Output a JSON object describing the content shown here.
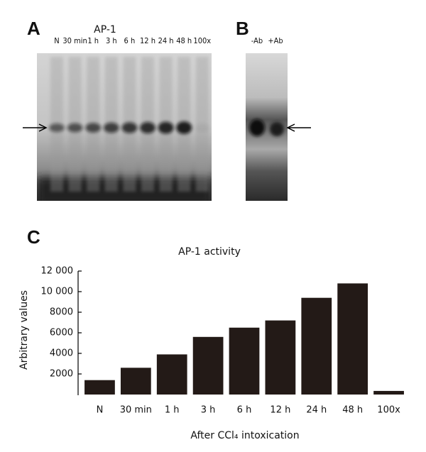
{
  "panel_a": {
    "letter": "A",
    "title": "AP-1",
    "lanes": [
      "N",
      "30 min",
      "1 h",
      "3 h",
      "6 h",
      "12 h",
      "24 h",
      "48 h",
      "100x"
    ]
  },
  "panel_b": {
    "letter": "B",
    "lanes": [
      "-Ab",
      "+Ab"
    ]
  },
  "chart_data": {
    "letter": "C",
    "type": "bar",
    "title": "AP-1 activity",
    "categories": [
      "N",
      "30 min",
      "1 h",
      "3 h",
      "6 h",
      "12 h",
      "24 h",
      "48 h",
      "100x"
    ],
    "values": [
      1400,
      2600,
      3900,
      5600,
      6500,
      7200,
      9400,
      10800,
      350
    ],
    "color": "#231a17",
    "ylabel": "Arbitrary values",
    "xlabel": "After CCl₄ intoxication",
    "ylim": [
      0,
      12000
    ],
    "yticks": [
      2000,
      4000,
      6000,
      8000,
      {
        "value": 10000,
        "label": "10 000"
      },
      {
        "value": 12000,
        "label": "12 000"
      }
    ]
  }
}
